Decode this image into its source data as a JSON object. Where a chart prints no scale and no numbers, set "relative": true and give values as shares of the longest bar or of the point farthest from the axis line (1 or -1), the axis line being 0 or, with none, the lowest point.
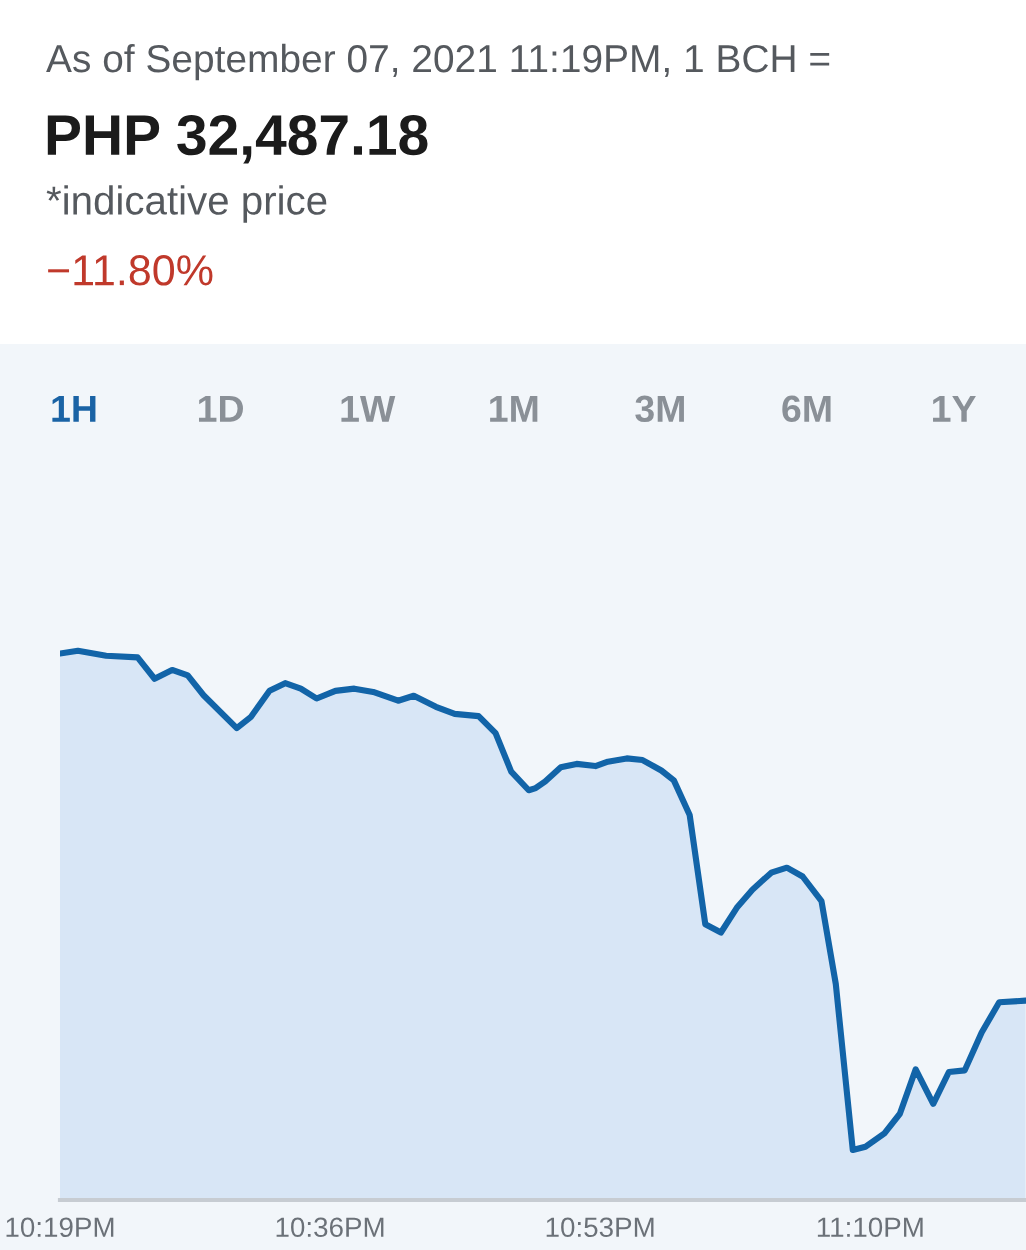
{
  "chart_data": {
    "type": "area",
    "title": "As of September 07, 2021 11:19PM, 1 BCH =",
    "subtitle": "PHP 32,487.18",
    "annotations": [
      "*indicative price",
      "−11.80%",
      "1H",
      "1D",
      "1W",
      "1M",
      "3M",
      "6M",
      "1Y"
    ],
    "relative": true,
    "tick_labels": "x",
    "xlim": [
      22.3167,
      23.33
    ],
    "xticks": [
      {
        "value": 22.3167,
        "label": "10:19PM"
      },
      {
        "value": 22.6,
        "label": "10:36PM"
      },
      {
        "value": 22.8833,
        "label": "10:53PM"
      },
      {
        "value": 23.1667,
        "label": "11:10PM"
      }
    ],
    "x": [
      22.3167,
      22.3355,
      22.3651,
      22.3981,
      22.4159,
      22.4343,
      22.4507,
      22.4673,
      22.5021,
      22.5167,
      22.5365,
      22.5529,
      22.5693,
      22.5859,
      22.6056,
      22.6254,
      22.6452,
      22.6714,
      22.6878,
      22.711,
      22.7307,
      22.7558,
      22.7736,
      22.79,
      22.8084,
      22.8157,
      22.8256,
      22.842,
      22.8586,
      22.8784,
      22.8914,
      22.9112,
      22.9278,
      22.9475,
      22.9606,
      22.9772,
      22.9936,
      23.01,
      23.0266,
      23.043,
      23.0628,
      23.0792,
      23.0957,
      23.1155,
      23.1305,
      23.1483,
      23.1616,
      23.1813,
      23.1977,
      23.2143,
      23.2327,
      23.2491,
      23.2657,
      23.2835,
      23.3019,
      23.3295
    ],
    "series": [
      {
        "color": "#1264a8",
        "values": [
          0.995,
          1.0,
          0.991,
          0.988,
          0.949,
          0.965,
          0.955,
          0.919,
          0.859,
          0.879,
          0.927,
          0.941,
          0.931,
          0.913,
          0.927,
          0.931,
          0.925,
          0.909,
          0.918,
          0.898,
          0.885,
          0.881,
          0.85,
          0.78,
          0.746,
          0.75,
          0.762,
          0.788,
          0.794,
          0.79,
          0.798,
          0.804,
          0.801,
          0.782,
          0.764,
          0.701,
          0.502,
          0.487,
          0.532,
          0.565,
          0.596,
          0.605,
          0.589,
          0.544,
          0.393,
          0.091,
          0.097,
          0.121,
          0.157,
          0.238,
          0.175,
          0.233,
          0.236,
          0.305,
          0.36,
          0.363
        ]
      }
    ]
  }
}
